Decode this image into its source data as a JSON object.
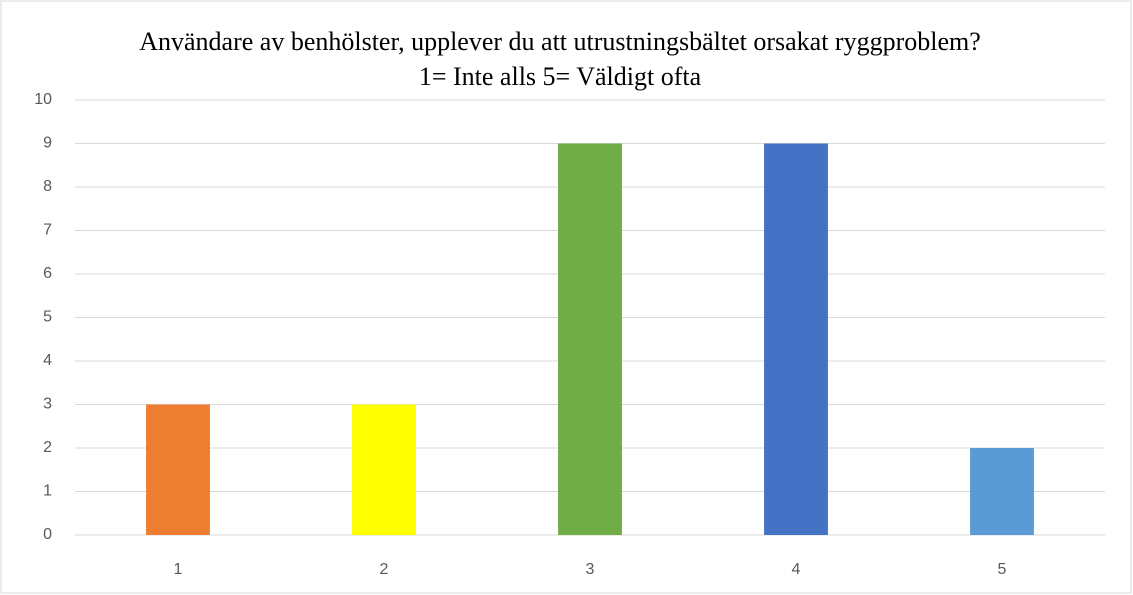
{
  "chart_data": {
    "type": "bar",
    "title": [
      "Användare av benhölster, upplever du att utrustningsbältet orsakat ryggproblem?",
      "1= Inte alls 5= Väldigt ofta"
    ],
    "categories": [
      "1",
      "2",
      "3",
      "4",
      "5"
    ],
    "values": [
      3,
      3,
      9,
      9,
      2
    ],
    "colors": [
      "#ed7d31",
      "#ffff00",
      "#70ad47",
      "#4472c4",
      "#5b9bd5"
    ],
    "ylim": [
      0,
      10
    ],
    "yticks": [
      0,
      1,
      2,
      3,
      4,
      5,
      6,
      7,
      8,
      9,
      10
    ],
    "grid": true
  }
}
